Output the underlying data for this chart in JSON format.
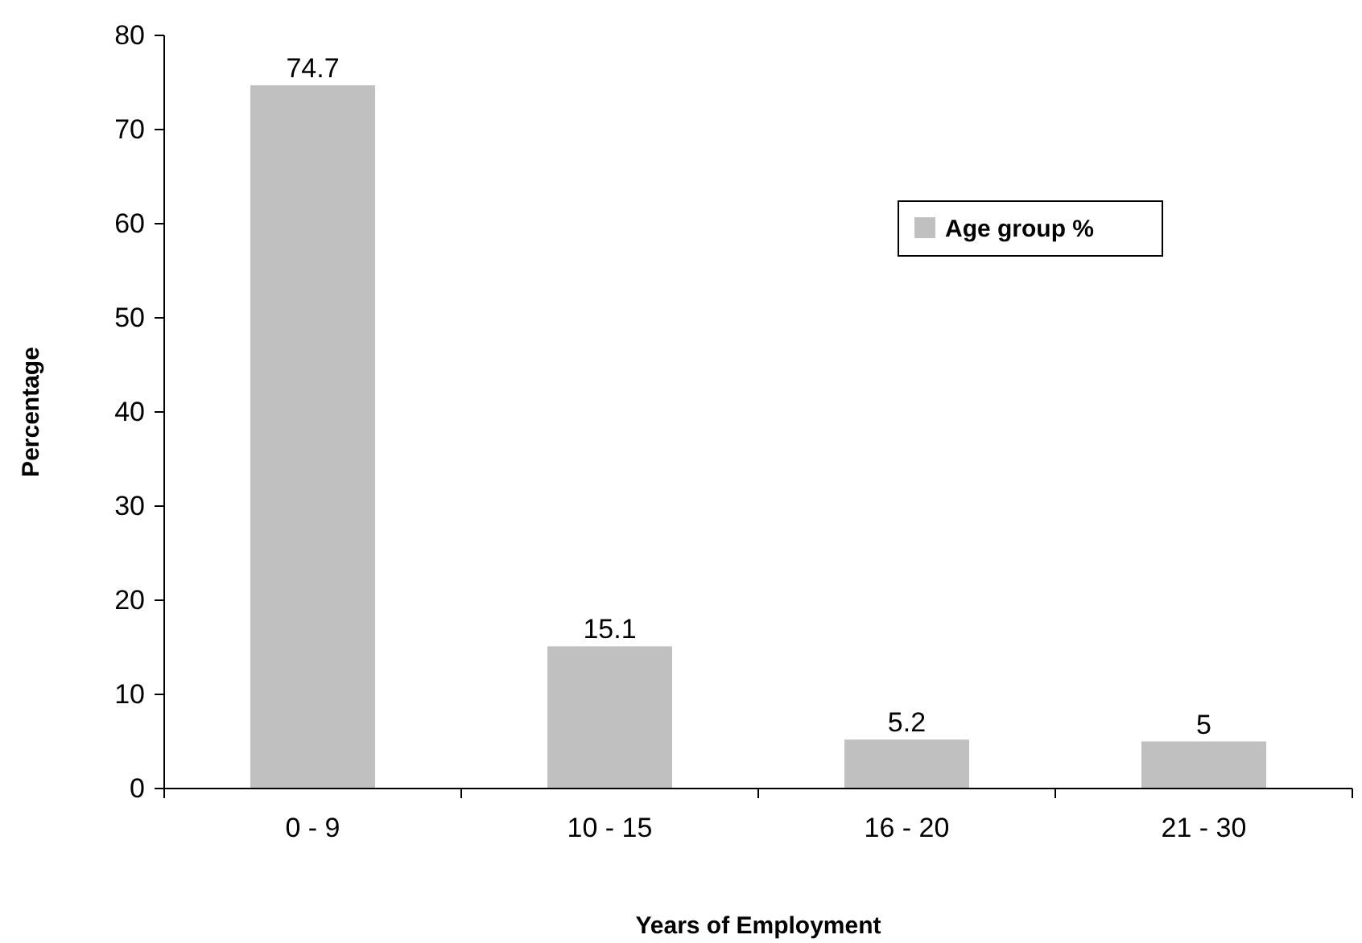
{
  "chart_data": {
    "type": "bar",
    "xlabel": "Years of Employment",
    "ylabel": "Percentage",
    "categories": [
      "0 - 9",
      "10 - 15",
      "16 - 20",
      "21 - 30"
    ],
    "series": [
      {
        "name": "Age group %",
        "color": "#c0c0c0",
        "values": [
          74.7,
          15.1,
          5.2,
          5
        ]
      }
    ],
    "ylim": [
      0,
      80
    ],
    "yticks": [
      0,
      10,
      20,
      30,
      40,
      50,
      60,
      70,
      80
    ],
    "data_labels": true,
    "legend": "top right",
    "grid": false
  }
}
